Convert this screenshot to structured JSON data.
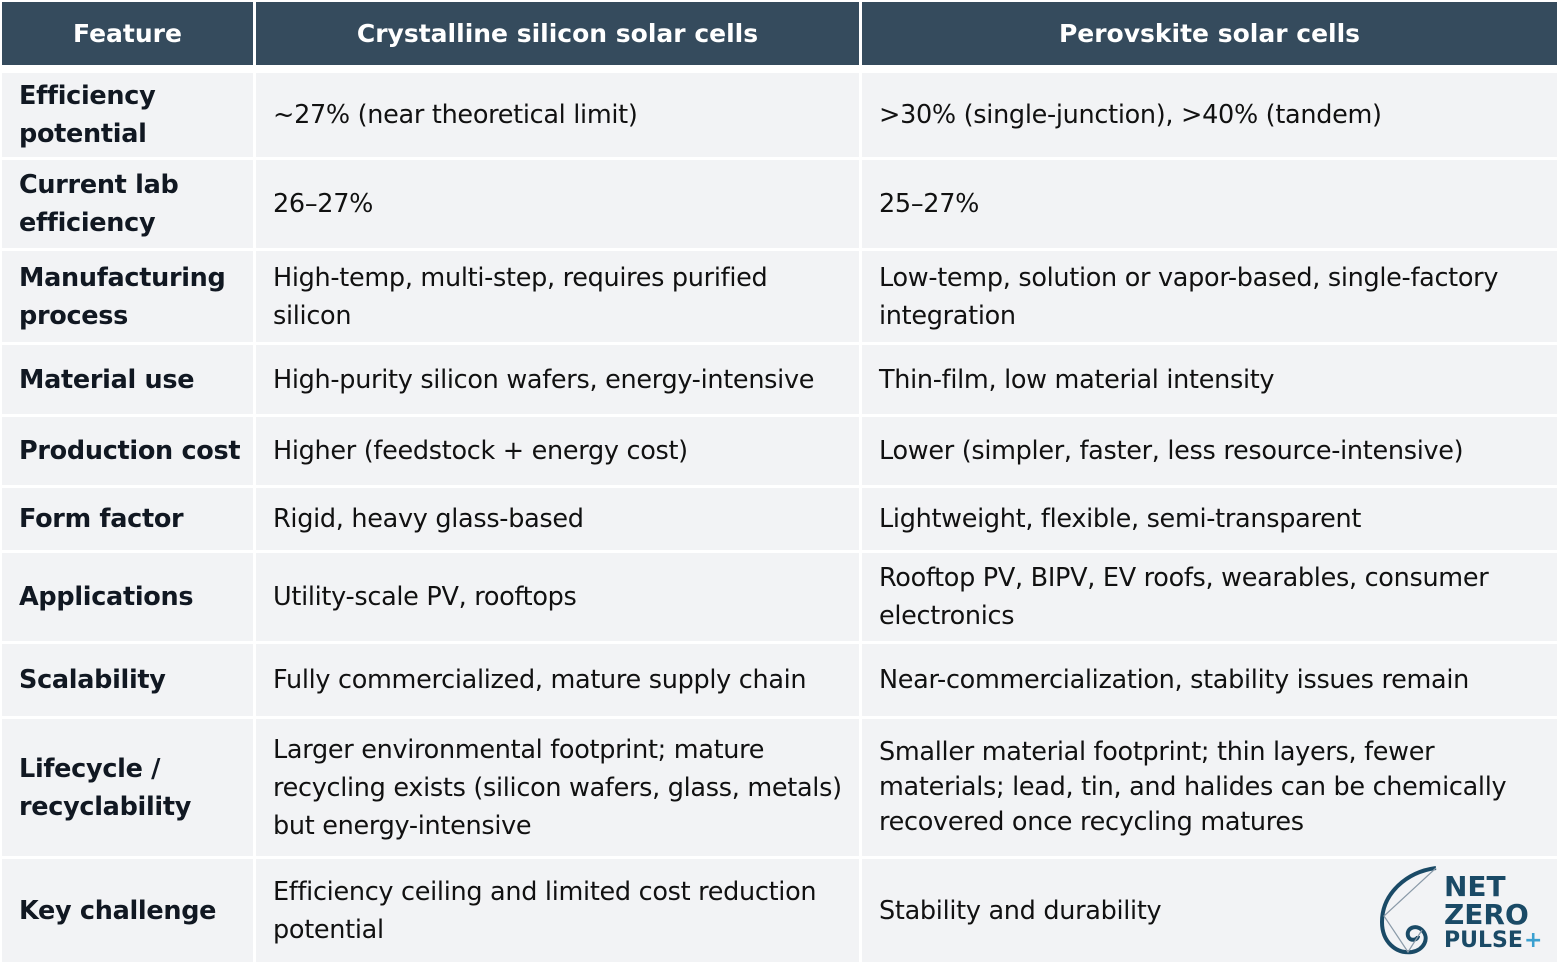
{
  "header": [
    "Feature",
    "Crystalline silicon solar cells",
    "Perovskite solar cells"
  ],
  "rows": [
    {
      "feature": "Efficiency potential",
      "silicon": "~27% (near theoretical limit)",
      "perovskite": ">30% (single-junction), >40% (tandem)"
    },
    {
      "feature": "Current lab efficiency",
      "silicon": "26–27%",
      "perovskite": "25–27%"
    },
    {
      "feature": "Manufacturing process",
      "silicon": "High-temp, multi-step, requires purified silicon",
      "perovskite": "Low-temp, solution or vapor-based, single-factory integration"
    },
    {
      "feature": "Material use",
      "silicon": "High-purity silicon wafers, energy-intensive",
      "perovskite": "Thin-film, low material intensity"
    },
    {
      "feature": "Production cost",
      "silicon": "Higher (feedstock + energy cost)",
      "perovskite": "Lower (simpler, faster, less resource-intensive)"
    },
    {
      "feature": "Form factor",
      "silicon": "Rigid, heavy glass-based",
      "perovskite": "Lightweight, flexible, semi-transparent"
    },
    {
      "feature": "Applications",
      "silicon": "Utility-scale PV, rooftops",
      "perovskite": "Rooftop PV, BIPV, EV roofs, wearables, consumer electronics"
    },
    {
      "feature": "Scalability",
      "silicon": "Fully commercialized, mature supply chain",
      "perovskite": "Near-commercialization, stability issues remain"
    },
    {
      "feature": "Lifecycle / recyclability",
      "silicon": "Larger environmental footprint; mature recycling exists (silicon wafers, glass, metals) but energy-intensive",
      "perovskite": "Smaller material footprint; thin layers, fewer materials; lead, tin, and halides can be chemically recovered once recycling matures"
    },
    {
      "feature": "Key challenge",
      "silicon": "Efficiency ceiling and limited cost reduction potential",
      "perovskite": "Stability and durability"
    }
  ],
  "logo": {
    "line1": "NET",
    "line2": "ZERO",
    "line3": "PULSE",
    "plus": "+",
    "color": "#1a4a66",
    "accent": "#3aa0d0"
  },
  "colors": {
    "header_bg": "#354b5d",
    "cell_bg": "#f2f3f5"
  }
}
